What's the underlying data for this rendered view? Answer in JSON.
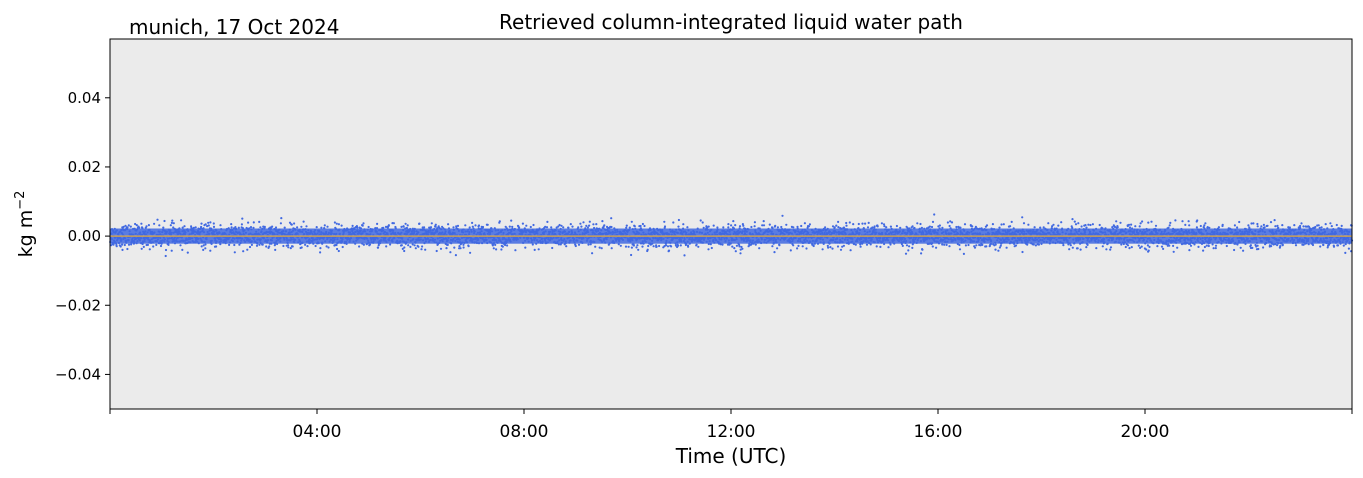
{
  "chart_data": {
    "type": "scatter",
    "title": "Retrieved column-integrated liquid water path",
    "location_label": "munich, 17 Oct 2024",
    "xlabel": "Time (UTC)",
    "ylabel_base": "kg m",
    "ylabel_exponent": "−2",
    "xlim": [
      "00:00",
      "24:00"
    ],
    "ylim": [
      -0.05,
      0.057
    ],
    "x_ticks": [
      {
        "hour": 0,
        "label": ""
      },
      {
        "hour": 4,
        "label": "04:00"
      },
      {
        "hour": 8,
        "label": "08:00"
      },
      {
        "hour": 12,
        "label": "12:00"
      },
      {
        "hour": 16,
        "label": "16:00"
      },
      {
        "hour": 20,
        "label": "20:00"
      },
      {
        "hour": 24,
        "label": ""
      }
    ],
    "y_ticks": [
      {
        "value": 0.04,
        "label": "0.04"
      },
      {
        "value": 0.02,
        "label": "0.02"
      },
      {
        "value": 0.0,
        "label": "0.00"
      },
      {
        "value": -0.02,
        "label": "−0.02"
      },
      {
        "value": -0.04,
        "label": "−0.04"
      }
    ],
    "grid": false,
    "series": [
      {
        "kind": "scatter",
        "color": "#4169e1",
        "center": 0.0,
        "spread_typical": 0.003,
        "spread_max": 0.007
      },
      {
        "kind": "line",
        "color": "#e8b04a",
        "value": 0.0
      }
    ],
    "zero_line": {
      "value": 0.0,
      "color": "#000000"
    },
    "plot_background": "#ebebeb"
  }
}
